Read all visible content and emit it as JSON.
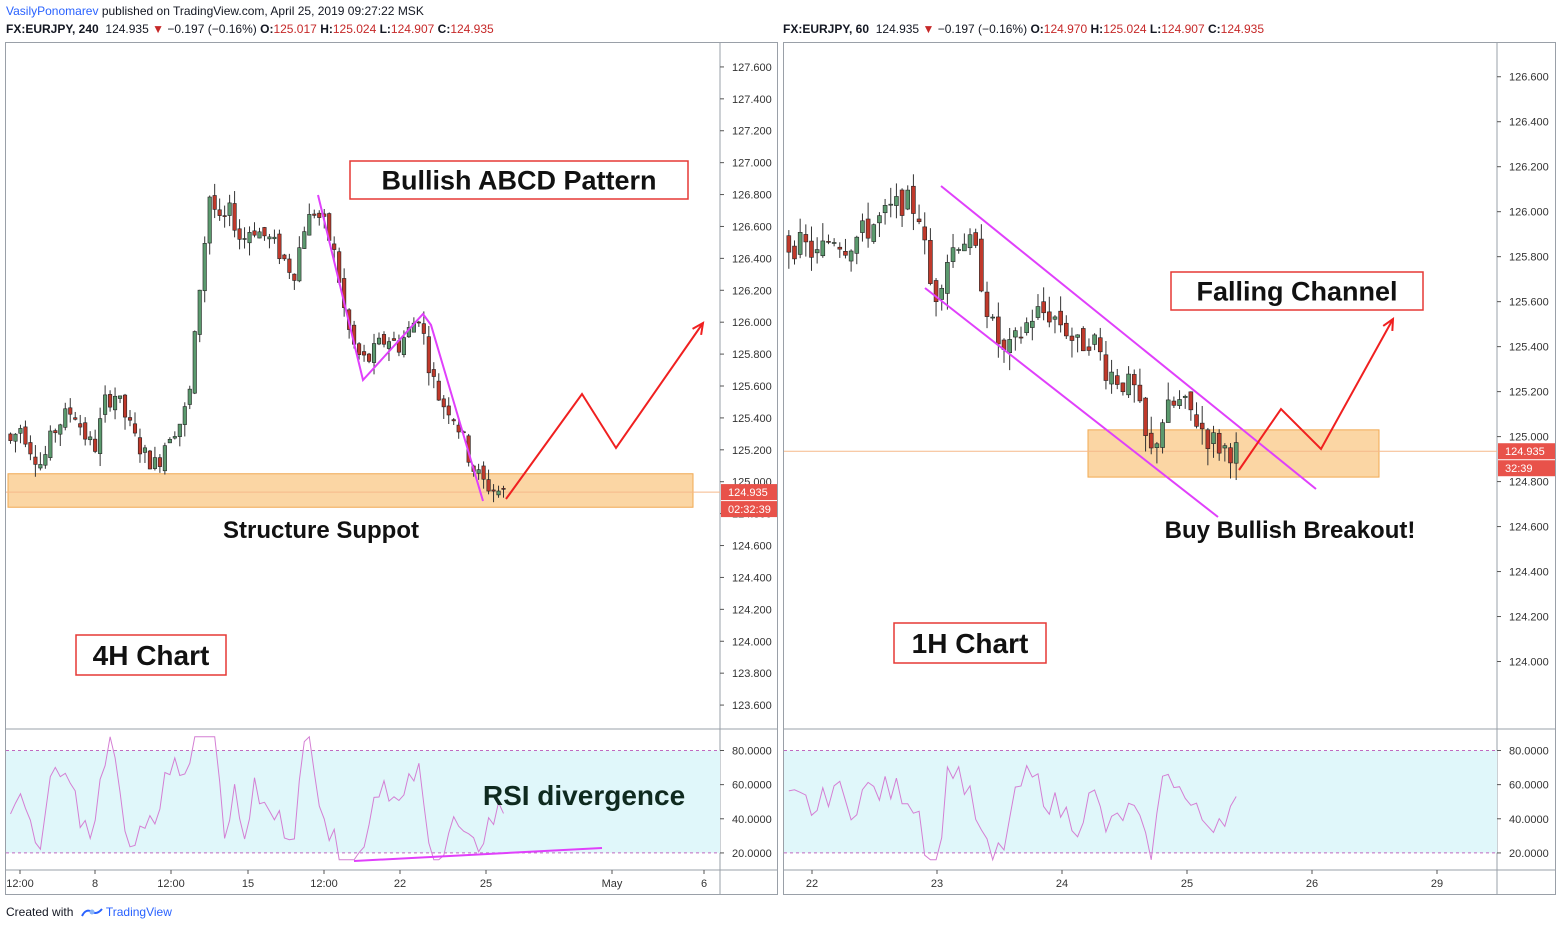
{
  "header": {
    "author": "VasilyPonomarev",
    "published_text": "published on TradingView.com, April 25, 2019 09:27:22 MSK"
  },
  "footer": {
    "created_with": "Created with",
    "brand": "TradingView"
  },
  "charts": [
    {
      "symbol_line": {
        "symbol": "FX:EURJPY, 240",
        "price": "124.935",
        "arrow": "▼",
        "change": "−0.197 (−0.16%)",
        "o_label": "O:",
        "o": "125.017",
        "h_label": "H:",
        "h": "125.024",
        "l_label": "L:",
        "l": "124.907",
        "c_label": "C:",
        "c": "124.935"
      },
      "price_axis": [
        "127.600",
        "127.400",
        "127.200",
        "127.000",
        "126.800",
        "126.600",
        "126.400",
        "126.200",
        "126.000",
        "125.800",
        "125.600",
        "125.400",
        "125.200",
        "125.000",
        "124.800",
        "124.600",
        "124.400",
        "124.200",
        "124.000",
        "123.800",
        "123.600"
      ],
      "last_price_tag": "124.935",
      "countdown_tag": "02:32:39",
      "rsi_axis": [
        "80.0000",
        "60.0000",
        "40.0000",
        "20.0000"
      ],
      "time_axis": [
        "12:00",
        "8",
        "12:00",
        "15",
        "12:00",
        "22",
        "25",
        "May",
        "6"
      ],
      "annotations": {
        "pattern": "Bullish ABCD Pattern",
        "support": "Structure Suppot",
        "timeframe": "4H Chart",
        "rsi": "RSI divergence"
      }
    },
    {
      "symbol_line": {
        "symbol": "FX:EURJPY, 60",
        "price": "124.935",
        "arrow": "▼",
        "change": "−0.197 (−0.16%)",
        "o_label": "O:",
        "o": "124.970",
        "h_label": "H:",
        "h": "125.024",
        "l_label": "L:",
        "l": "124.907",
        "c_label": "C:",
        "c": "124.935"
      },
      "price_axis": [
        "126.600",
        "126.400",
        "126.200",
        "126.000",
        "125.800",
        "125.600",
        "125.400",
        "125.200",
        "125.000",
        "124.800",
        "124.600",
        "124.400",
        "124.200",
        "124.000"
      ],
      "last_price_tag": "124.935",
      "countdown_tag": "32:39",
      "rsi_axis": [
        "80.0000",
        "60.0000",
        "40.0000",
        "20.0000"
      ],
      "time_axis": [
        "22",
        "23",
        "24",
        "25",
        "26",
        "29"
      ],
      "annotations": {
        "channel": "Falling Channel",
        "breakout": "Buy Bullish Breakout!",
        "timeframe": "1H Chart"
      }
    }
  ],
  "colors": {
    "bull": "#5b9a6e",
    "bear": "#c0392b",
    "support_zone": "#fbd29b",
    "rsi_band": "#e0f7fa",
    "rsi_line": "#d47fd4",
    "pattern_line": "#e040fb",
    "arrow": "#f02020",
    "label_border": "#e53935"
  },
  "chart_data": [
    {
      "type": "candlestick",
      "title": "FX:EURJPY, 240",
      "ylim": [
        123.45,
        127.75
      ],
      "x": [
        "12:00",
        "8",
        "12:00",
        "15",
        "12:00",
        "22",
        "25",
        "May",
        "6"
      ],
      "close_path": [
        125.25,
        125.35,
        125.2,
        125.1,
        125.3,
        125.4,
        125.45,
        125.3,
        125.2,
        125.5,
        125.55,
        125.4,
        125.25,
        125.15,
        125.1,
        125.3,
        125.35,
        125.5,
        126.2,
        126.8,
        126.6,
        126.7,
        126.5,
        126.6,
        126.55,
        126.5,
        126.4,
        126.3,
        126.6,
        126.7,
        126.6,
        126.4,
        126.0,
        125.8,
        125.75,
        125.85,
        125.9,
        125.85,
        125.95,
        126.05,
        125.7,
        125.5,
        125.45,
        125.3,
        125.1,
        125.0,
        124.95,
        124.935
      ],
      "rsi": {
        "ylim": [
          10,
          92
        ],
        "levels": [
          80,
          20
        ]
      },
      "annotations": [
        "Bullish ABCD Pattern",
        "Structure Suppot",
        "4H Chart",
        "RSI divergence"
      ]
    },
    {
      "type": "candlestick",
      "title": "FX:EURJPY, 60",
      "ylim": [
        123.7,
        126.75
      ],
      "x": [
        "22",
        "23",
        "24",
        "25",
        "26",
        "29"
      ],
      "close_path": [
        125.85,
        125.85,
        125.8,
        125.9,
        125.85,
        125.9,
        125.95,
        126.0,
        126.05,
        126.0,
        125.6,
        125.8,
        125.9,
        125.8,
        125.5,
        125.35,
        125.45,
        125.55,
        125.55,
        125.5,
        125.4,
        125.45,
        125.3,
        125.25,
        125.2,
        124.9,
        125.1,
        125.15,
        125.1,
        125.0,
        124.95,
        124.935
      ],
      "rsi": {
        "ylim": [
          10,
          92
        ],
        "levels": [
          80,
          20
        ]
      },
      "annotations": [
        "Falling Channel",
        "Buy Bullish Breakout!",
        "1H Chart"
      ]
    }
  ]
}
